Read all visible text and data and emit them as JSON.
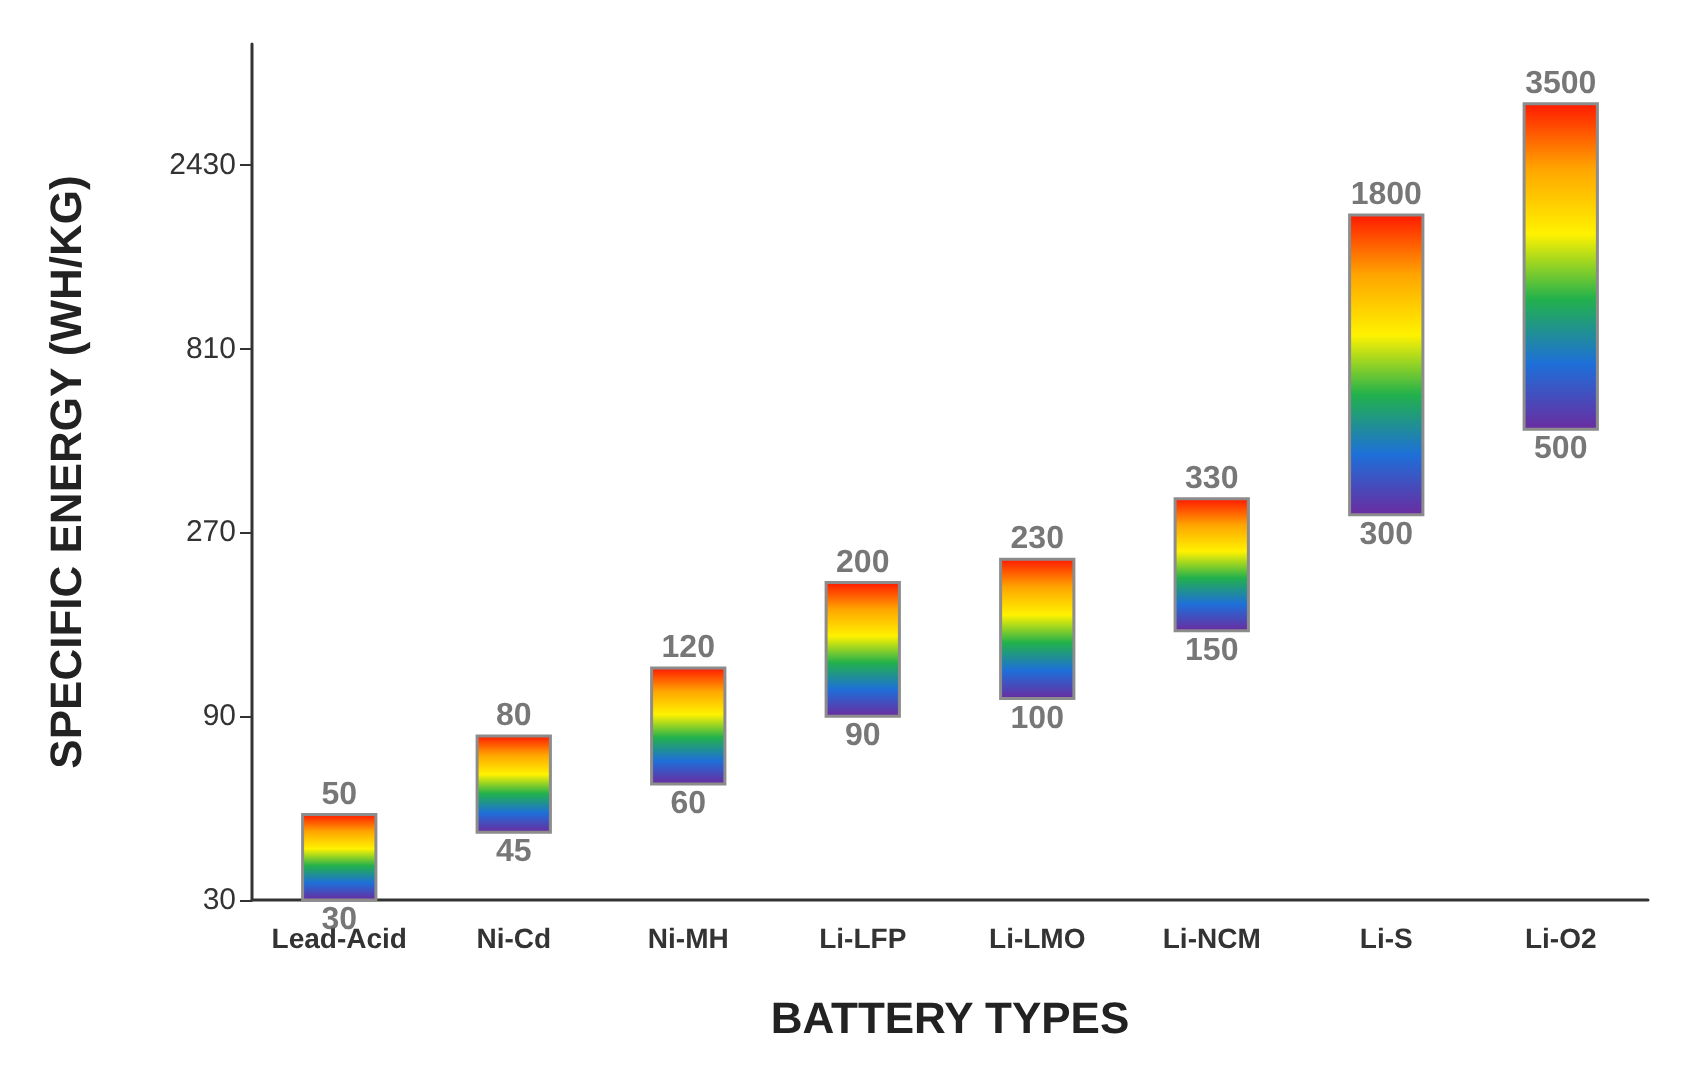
{
  "chart_data": {
    "type": "bar",
    "xlabel": "BATTERY TYPES",
    "ylabel": "SPECIFIC ENERGY (WH/KG)",
    "categories": [
      "Lead-Acid",
      "Ni-Cd",
      "Ni-MH",
      "Li-LFP",
      "Li-LMO",
      "Li-NCM",
      "Li-S",
      "Li-O2"
    ],
    "base": [
      30,
      45,
      60,
      90,
      100,
      150,
      300,
      500
    ],
    "values": [
      20,
      35,
      60,
      110,
      130,
      180,
      1500,
      3000
    ],
    "value_labels": [
      "50",
      "80",
      "120",
      "200",
      "230",
      "330",
      "1800",
      "3500"
    ],
    "annotations": [
      {
        "text": "30",
        "x": "Lead-Acid",
        "y": 30
      },
      {
        "text": "45",
        "x": "Ni-Cd",
        "y": 45
      },
      {
        "text": "60",
        "x": "Ni-MH",
        "y": 60
      },
      {
        "text": "90",
        "x": "Li-LFP",
        "y": 90
      },
      {
        "text": "100",
        "x": "Li-LMO",
        "y": 100
      },
      {
        "text": "150",
        "x": "Li-NCM",
        "y": 150
      },
      {
        "text": "300",
        "x": "Li-S",
        "y": 300
      },
      {
        "text": "500",
        "x": "Li-O2",
        "y": 500
      }
    ],
    "log": "y",
    "ylim": [
      30,
      5000
    ],
    "yticks": [
      30,
      90,
      270,
      810,
      2430
    ],
    "grid": false
  }
}
